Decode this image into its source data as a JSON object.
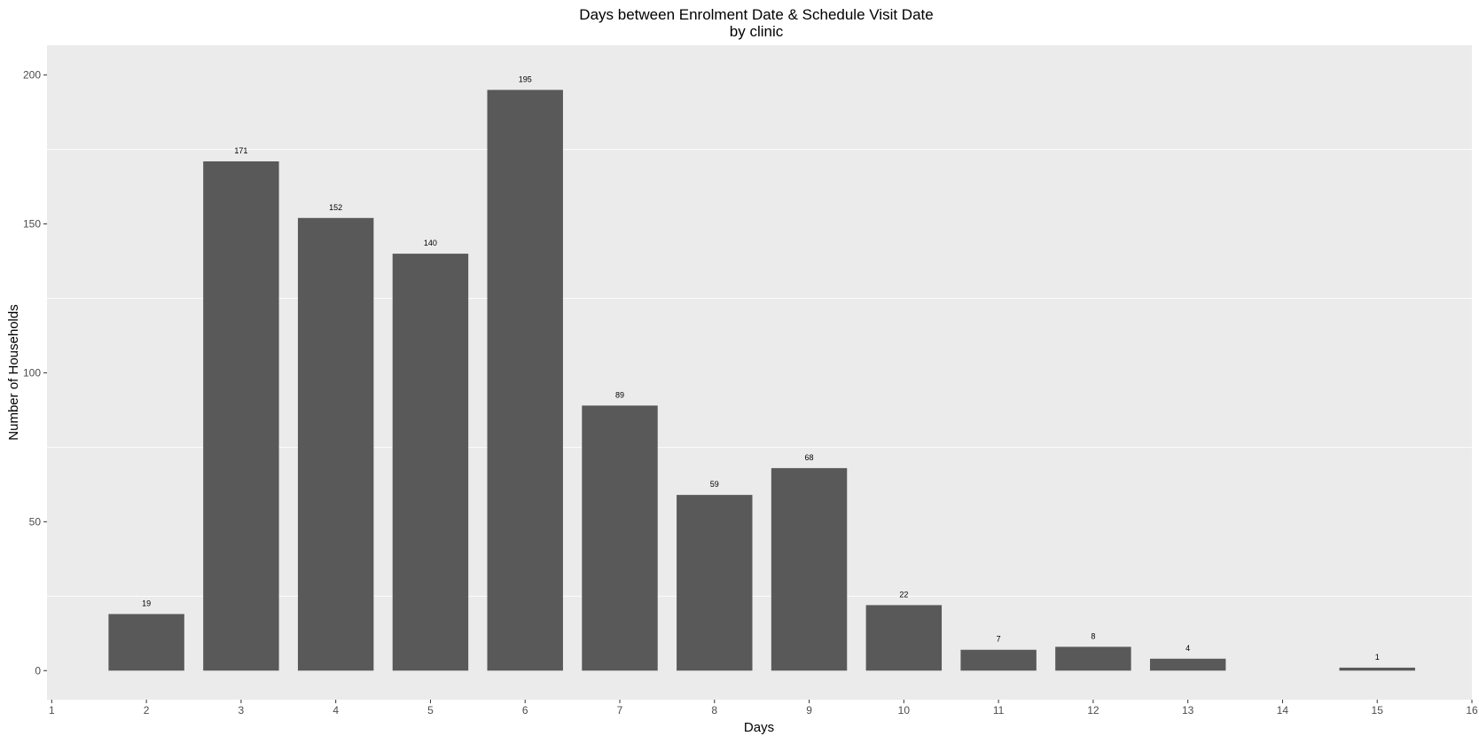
{
  "chart_data": {
    "type": "bar",
    "title": "Days between Enrolment Date & Schedule Visit Date",
    "subtitle": "by clinic",
    "xlabel": "Days",
    "ylabel": "Number of Households",
    "x": [
      2,
      3,
      4,
      5,
      6,
      7,
      8,
      9,
      10,
      11,
      12,
      13,
      15
    ],
    "values": [
      19,
      171,
      152,
      140,
      195,
      89,
      59,
      68,
      22,
      7,
      8,
      4,
      1
    ],
    "data_labels": [
      "19",
      "171",
      "152",
      "140",
      "195",
      "89",
      "59",
      "68",
      "22",
      "7",
      "8",
      "4",
      "1"
    ],
    "xlim": [
      0.95,
      16
    ],
    "ylim": [
      -9.75,
      210
    ],
    "x_ticks": [
      "1",
      "2",
      "3",
      "4",
      "5",
      "6",
      "7",
      "8",
      "9",
      "10",
      "11",
      "12",
      "13",
      "14",
      "15",
      "16"
    ],
    "y_ticks": [
      "0",
      "50",
      "100",
      "150",
      "200"
    ],
    "grid": true,
    "legend": "none",
    "colors": {
      "bar": "#595959",
      "panel": "#EBEBEB",
      "grid": "#FFFFFF",
      "tick_text": "#4D4D4D",
      "tick_mark": "#333333"
    }
  }
}
